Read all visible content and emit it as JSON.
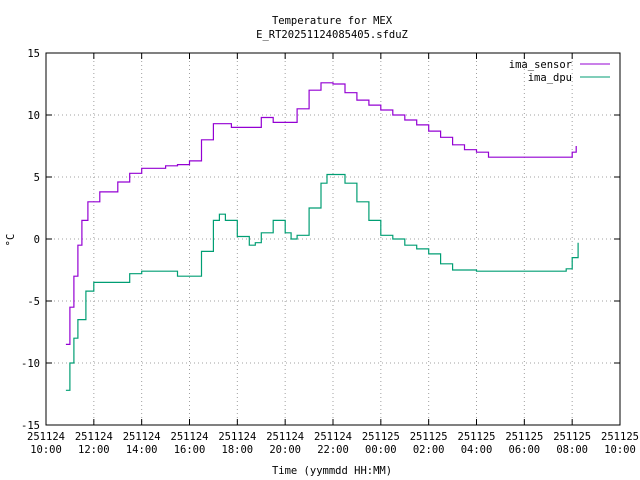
{
  "chart_data": {
    "type": "line",
    "title": "Temperature for MEX",
    "subtitle": "E_RT20251124085405.sfduZ",
    "xlabel": "Time (yymmdd HH:MM)",
    "ylabel": "°C",
    "ylim": [
      -15,
      15
    ],
    "yticks": [
      -15,
      -10,
      -5,
      0,
      5,
      10,
      15
    ],
    "xlim": [
      "2025-11-24 10:00",
      "2025-11-25 10:00"
    ],
    "xticks": [
      {
        "date": "251124",
        "time": "10:00"
      },
      {
        "date": "251124",
        "time": "12:00"
      },
      {
        "date": "251124",
        "time": "14:00"
      },
      {
        "date": "251124",
        "time": "16:00"
      },
      {
        "date": "251124",
        "time": "18:00"
      },
      {
        "date": "251124",
        "time": "20:00"
      },
      {
        "date": "251124",
        "time": "22:00"
      },
      {
        "date": "251125",
        "time": "00:00"
      },
      {
        "date": "251125",
        "time": "02:00"
      },
      {
        "date": "251125",
        "time": "04:00"
      },
      {
        "date": "251125",
        "time": "06:00"
      },
      {
        "date": "251125",
        "time": "08:00"
      },
      {
        "date": "251125",
        "time": "10:00"
      }
    ],
    "grid": true,
    "legend_position": "top-right",
    "series": [
      {
        "name": "ima_sensor",
        "color": "#9400d3",
        "points": [
          [
            "2025-11-24 10:50",
            -8.5
          ],
          [
            "2025-11-24 11:00",
            -5.5
          ],
          [
            "2025-11-24 11:10",
            -3.0
          ],
          [
            "2025-11-24 11:20",
            -0.5
          ],
          [
            "2025-11-24 11:30",
            1.5
          ],
          [
            "2025-11-24 11:45",
            3.0
          ],
          [
            "2025-11-24 12:15",
            3.8
          ],
          [
            "2025-11-24 13:00",
            4.6
          ],
          [
            "2025-11-24 13:30",
            5.3
          ],
          [
            "2025-11-24 14:00",
            5.7
          ],
          [
            "2025-11-24 15:00",
            5.9
          ],
          [
            "2025-11-24 15:30",
            6.0
          ],
          [
            "2025-11-24 16:00",
            6.3
          ],
          [
            "2025-11-24 16:30",
            8.0
          ],
          [
            "2025-11-24 17:00",
            9.3
          ],
          [
            "2025-11-24 17:30",
            9.3
          ],
          [
            "2025-11-24 17:45",
            9.0
          ],
          [
            "2025-11-24 18:45",
            9.0
          ],
          [
            "2025-11-24 19:00",
            9.8
          ],
          [
            "2025-11-24 19:30",
            9.4
          ],
          [
            "2025-11-24 20:00",
            9.4
          ],
          [
            "2025-11-24 20:30",
            10.5
          ],
          [
            "2025-11-24 21:00",
            12.0
          ],
          [
            "2025-11-24 21:30",
            12.6
          ],
          [
            "2025-11-24 22:00",
            12.5
          ],
          [
            "2025-11-24 22:30",
            11.8
          ],
          [
            "2025-11-24 23:00",
            11.2
          ],
          [
            "2025-11-24 23:30",
            10.8
          ],
          [
            "2025-11-25 00:00",
            10.4
          ],
          [
            "2025-11-25 00:30",
            10.0
          ],
          [
            "2025-11-25 01:00",
            9.6
          ],
          [
            "2025-11-25 01:30",
            9.2
          ],
          [
            "2025-11-25 02:00",
            8.7
          ],
          [
            "2025-11-25 02:30",
            8.2
          ],
          [
            "2025-11-25 03:00",
            7.6
          ],
          [
            "2025-11-25 03:30",
            7.2
          ],
          [
            "2025-11-25 04:00",
            7.0
          ],
          [
            "2025-11-25 04:30",
            6.6
          ],
          [
            "2025-11-25 06:00",
            6.6
          ],
          [
            "2025-11-25 07:00",
            6.6
          ],
          [
            "2025-11-25 07:55",
            6.6
          ],
          [
            "2025-11-25 08:00",
            7.0
          ],
          [
            "2025-11-25 08:10",
            7.5
          ]
        ]
      },
      {
        "name": "ima_dpu",
        "color": "#009e73",
        "points": [
          [
            "2025-11-24 10:50",
            -12.2
          ],
          [
            "2025-11-24 11:00",
            -10.0
          ],
          [
            "2025-11-24 11:10",
            -8.0
          ],
          [
            "2025-11-24 11:20",
            -6.5
          ],
          [
            "2025-11-24 11:40",
            -4.2
          ],
          [
            "2025-11-24 12:00",
            -3.5
          ],
          [
            "2025-11-24 12:30",
            -3.5
          ],
          [
            "2025-11-24 13:00",
            -3.5
          ],
          [
            "2025-11-24 13:30",
            -2.8
          ],
          [
            "2025-11-24 14:00",
            -2.6
          ],
          [
            "2025-11-24 15:00",
            -2.6
          ],
          [
            "2025-11-24 15:30",
            -3.0
          ],
          [
            "2025-11-24 16:00",
            -3.0
          ],
          [
            "2025-11-24 16:30",
            -1.0
          ],
          [
            "2025-11-24 17:00",
            1.5
          ],
          [
            "2025-11-24 17:15",
            2.0
          ],
          [
            "2025-11-24 17:30",
            1.5
          ],
          [
            "2025-11-24 18:00",
            0.2
          ],
          [
            "2025-11-24 18:30",
            -0.5
          ],
          [
            "2025-11-24 18:45",
            -0.3
          ],
          [
            "2025-11-24 19:00",
            0.5
          ],
          [
            "2025-11-24 19:30",
            1.5
          ],
          [
            "2025-11-24 20:00",
            0.5
          ],
          [
            "2025-11-24 20:15",
            0.0
          ],
          [
            "2025-11-24 20:30",
            0.3
          ],
          [
            "2025-11-24 21:00",
            2.5
          ],
          [
            "2025-11-24 21:30",
            4.5
          ],
          [
            "2025-11-24 21:45",
            5.2
          ],
          [
            "2025-11-24 22:15",
            5.2
          ],
          [
            "2025-11-24 22:30",
            4.5
          ],
          [
            "2025-11-24 23:00",
            3.0
          ],
          [
            "2025-11-24 23:30",
            1.5
          ],
          [
            "2025-11-25 00:00",
            0.3
          ],
          [
            "2025-11-25 00:30",
            0.0
          ],
          [
            "2025-11-25 01:00",
            -0.5
          ],
          [
            "2025-11-25 01:30",
            -0.8
          ],
          [
            "2025-11-25 02:00",
            -1.2
          ],
          [
            "2025-11-25 02:30",
            -2.0
          ],
          [
            "2025-11-25 03:00",
            -2.5
          ],
          [
            "2025-11-25 04:00",
            -2.6
          ],
          [
            "2025-11-25 06:00",
            -2.6
          ],
          [
            "2025-11-25 07:00",
            -2.6
          ],
          [
            "2025-11-25 07:30",
            -2.6
          ],
          [
            "2025-11-25 07:45",
            -2.4
          ],
          [
            "2025-11-25 08:00",
            -1.5
          ],
          [
            "2025-11-25 08:15",
            -0.3
          ]
        ]
      }
    ]
  }
}
